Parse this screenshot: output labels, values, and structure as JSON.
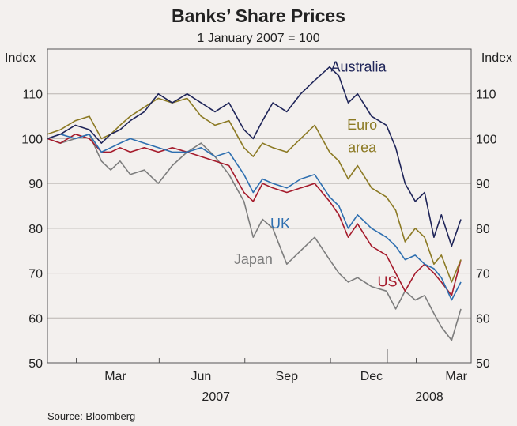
{
  "chart_data": {
    "type": "line",
    "title": "Banks’ Share Prices",
    "subtitle": "1 January 2007 = 100",
    "y_unit_left": "Index",
    "y_unit_right": "Index",
    "source": "Source: Bloomberg",
    "ylim": [
      50,
      120
    ],
    "y_ticks": [
      50,
      60,
      70,
      80,
      90,
      100,
      110
    ],
    "xlim": [
      "2007-01-01",
      "2008-03-31"
    ],
    "x_ticks": [
      {
        "date": "2007-03-15",
        "label": "Mar"
      },
      {
        "date": "2007-06-15",
        "label": "Jun"
      },
      {
        "date": "2007-09-15",
        "label": "Sep"
      },
      {
        "date": "2007-12-15",
        "label": "Dec"
      },
      {
        "date": "2008-03-15",
        "label": "Mar"
      }
    ],
    "x_year_labels": [
      {
        "label": "2007",
        "date": "2007-07-01"
      },
      {
        "label": "2008",
        "date": "2008-02-15"
      }
    ],
    "grid": "horizontal",
    "series": [
      {
        "name": "Australia",
        "color": "#1f2559",
        "points": [
          [
            "2007-01-01",
            100
          ],
          [
            "2007-01-15",
            101
          ],
          [
            "2007-01-31",
            103
          ],
          [
            "2007-02-15",
            102
          ],
          [
            "2007-02-28",
            99
          ],
          [
            "2007-03-10",
            101
          ],
          [
            "2007-03-20",
            102
          ],
          [
            "2007-03-31",
            104
          ],
          [
            "2007-04-15",
            106
          ],
          [
            "2007-04-30",
            110
          ],
          [
            "2007-05-15",
            108
          ],
          [
            "2007-05-31",
            110
          ],
          [
            "2007-06-15",
            108
          ],
          [
            "2007-06-30",
            106
          ],
          [
            "2007-07-15",
            108
          ],
          [
            "2007-07-31",
            102
          ],
          [
            "2007-08-10",
            100
          ],
          [
            "2007-08-20",
            104
          ],
          [
            "2007-08-31",
            108
          ],
          [
            "2007-09-15",
            106
          ],
          [
            "2007-09-30",
            110
          ],
          [
            "2007-10-15",
            113
          ],
          [
            "2007-10-31",
            116
          ],
          [
            "2007-11-10",
            114
          ],
          [
            "2007-11-20",
            108
          ],
          [
            "2007-11-30",
            110
          ],
          [
            "2007-12-15",
            105
          ],
          [
            "2007-12-31",
            103
          ],
          [
            "2008-01-10",
            98
          ],
          [
            "2008-01-20",
            90
          ],
          [
            "2008-01-31",
            86
          ],
          [
            "2008-02-10",
            88
          ],
          [
            "2008-02-20",
            78
          ],
          [
            "2008-02-28",
            83
          ],
          [
            "2008-03-10",
            76
          ],
          [
            "2008-03-20",
            82
          ]
        ]
      },
      {
        "name": "Euro area",
        "color": "#8c7a24",
        "points": [
          [
            "2007-01-01",
            101
          ],
          [
            "2007-01-15",
            102
          ],
          [
            "2007-01-31",
            104
          ],
          [
            "2007-02-15",
            105
          ],
          [
            "2007-02-28",
            100
          ],
          [
            "2007-03-10",
            101
          ],
          [
            "2007-03-20",
            103
          ],
          [
            "2007-03-31",
            105
          ],
          [
            "2007-04-15",
            107
          ],
          [
            "2007-04-30",
            109
          ],
          [
            "2007-05-15",
            108
          ],
          [
            "2007-05-31",
            109
          ],
          [
            "2007-06-15",
            105
          ],
          [
            "2007-06-30",
            103
          ],
          [
            "2007-07-15",
            104
          ],
          [
            "2007-07-31",
            98
          ],
          [
            "2007-08-10",
            96
          ],
          [
            "2007-08-20",
            99
          ],
          [
            "2007-08-31",
            98
          ],
          [
            "2007-09-15",
            97
          ],
          [
            "2007-09-30",
            100
          ],
          [
            "2007-10-15",
            103
          ],
          [
            "2007-10-31",
            97
          ],
          [
            "2007-11-10",
            95
          ],
          [
            "2007-11-20",
            91
          ],
          [
            "2007-11-30",
            94
          ],
          [
            "2007-12-15",
            89
          ],
          [
            "2007-12-31",
            87
          ],
          [
            "2008-01-10",
            84
          ],
          [
            "2008-01-20",
            77
          ],
          [
            "2008-01-31",
            80
          ],
          [
            "2008-02-10",
            78
          ],
          [
            "2008-02-20",
            72
          ],
          [
            "2008-02-28",
            74
          ],
          [
            "2008-03-10",
            68
          ],
          [
            "2008-03-20",
            73
          ]
        ]
      },
      {
        "name": "UK",
        "color": "#2e6fb0",
        "points": [
          [
            "2007-01-01",
            100
          ],
          [
            "2007-01-15",
            101
          ],
          [
            "2007-01-31",
            100
          ],
          [
            "2007-02-15",
            101
          ],
          [
            "2007-02-28",
            97
          ],
          [
            "2007-03-10",
            98
          ],
          [
            "2007-03-20",
            99
          ],
          [
            "2007-03-31",
            100
          ],
          [
            "2007-04-15",
            99
          ],
          [
            "2007-04-30",
            98
          ],
          [
            "2007-05-15",
            97
          ],
          [
            "2007-05-31",
            97
          ],
          [
            "2007-06-15",
            98
          ],
          [
            "2007-06-30",
            96
          ],
          [
            "2007-07-15",
            97
          ],
          [
            "2007-07-31",
            92
          ],
          [
            "2007-08-10",
            88
          ],
          [
            "2007-08-20",
            91
          ],
          [
            "2007-08-31",
            90
          ],
          [
            "2007-09-15",
            89
          ],
          [
            "2007-09-30",
            91
          ],
          [
            "2007-10-15",
            92
          ],
          [
            "2007-10-31",
            87
          ],
          [
            "2007-11-10",
            85
          ],
          [
            "2007-11-20",
            80
          ],
          [
            "2007-11-30",
            83
          ],
          [
            "2007-12-15",
            80
          ],
          [
            "2007-12-31",
            78
          ],
          [
            "2008-01-10",
            76
          ],
          [
            "2008-01-20",
            73
          ],
          [
            "2008-01-31",
            74
          ],
          [
            "2008-02-10",
            72
          ],
          [
            "2008-02-20",
            71
          ],
          [
            "2008-02-28",
            69
          ],
          [
            "2008-03-10",
            64
          ],
          [
            "2008-03-20",
            68
          ]
        ]
      },
      {
        "name": "US",
        "color": "#a51a2b",
        "points": [
          [
            "2007-01-01",
            100
          ],
          [
            "2007-01-15",
            99
          ],
          [
            "2007-01-31",
            101
          ],
          [
            "2007-02-15",
            100
          ],
          [
            "2007-02-28",
            97
          ],
          [
            "2007-03-10",
            97
          ],
          [
            "2007-03-20",
            98
          ],
          [
            "2007-03-31",
            97
          ],
          [
            "2007-04-15",
            98
          ],
          [
            "2007-04-30",
            97
          ],
          [
            "2007-05-15",
            98
          ],
          [
            "2007-05-31",
            97
          ],
          [
            "2007-06-15",
            96
          ],
          [
            "2007-06-30",
            95
          ],
          [
            "2007-07-15",
            94
          ],
          [
            "2007-07-31",
            88
          ],
          [
            "2007-08-10",
            86
          ],
          [
            "2007-08-20",
            90
          ],
          [
            "2007-08-31",
            89
          ],
          [
            "2007-09-15",
            88
          ],
          [
            "2007-09-30",
            89
          ],
          [
            "2007-10-15",
            90
          ],
          [
            "2007-10-31",
            86
          ],
          [
            "2007-11-10",
            83
          ],
          [
            "2007-11-20",
            78
          ],
          [
            "2007-11-30",
            81
          ],
          [
            "2007-12-15",
            76
          ],
          [
            "2007-12-31",
            74
          ],
          [
            "2008-01-10",
            70
          ],
          [
            "2008-01-20",
            66
          ],
          [
            "2008-01-31",
            70
          ],
          [
            "2008-02-10",
            72
          ],
          [
            "2008-02-20",
            70
          ],
          [
            "2008-02-28",
            68
          ],
          [
            "2008-03-10",
            65
          ],
          [
            "2008-03-20",
            73
          ]
        ]
      },
      {
        "name": "Japan",
        "color": "#7d7d7d",
        "points": [
          [
            "2007-01-01",
            100
          ],
          [
            "2007-01-15",
            99
          ],
          [
            "2007-01-31",
            100
          ],
          [
            "2007-02-15",
            101
          ],
          [
            "2007-02-28",
            95
          ],
          [
            "2007-03-10",
            93
          ],
          [
            "2007-03-20",
            95
          ],
          [
            "2007-03-31",
            92
          ],
          [
            "2007-04-15",
            93
          ],
          [
            "2007-04-30",
            90
          ],
          [
            "2007-05-15",
            94
          ],
          [
            "2007-05-31",
            97
          ],
          [
            "2007-06-15",
            99
          ],
          [
            "2007-06-30",
            96
          ],
          [
            "2007-07-15",
            92
          ],
          [
            "2007-07-31",
            86
          ],
          [
            "2007-08-10",
            78
          ],
          [
            "2007-08-20",
            82
          ],
          [
            "2007-08-31",
            80
          ],
          [
            "2007-09-15",
            72
          ],
          [
            "2007-09-30",
            75
          ],
          [
            "2007-10-15",
            78
          ],
          [
            "2007-10-31",
            73
          ],
          [
            "2007-11-10",
            70
          ],
          [
            "2007-11-20",
            68
          ],
          [
            "2007-11-30",
            69
          ],
          [
            "2007-12-15",
            67
          ],
          [
            "2007-12-31",
            66
          ],
          [
            "2008-01-10",
            62
          ],
          [
            "2008-01-20",
            66
          ],
          [
            "2008-01-31",
            64
          ],
          [
            "2008-02-10",
            65
          ],
          [
            "2008-02-20",
            61
          ],
          [
            "2008-02-28",
            58
          ],
          [
            "2008-03-10",
            55
          ],
          [
            "2008-03-20",
            62
          ]
        ]
      }
    ],
    "annotations": [
      {
        "text": "Australia",
        "series": "Australia",
        "anchor": [
          "2007-12-01",
          115
        ]
      },
      {
        "text": "Euro",
        "series": "Euro area",
        "anchor": [
          "2007-12-05",
          102
        ]
      },
      {
        "text": "area",
        "series": "Euro area",
        "anchor": [
          "2007-12-05",
          97
        ]
      },
      {
        "text": "UK",
        "series": "UK",
        "anchor": [
          "2007-09-08",
          80
        ]
      },
      {
        "text": "Japan",
        "series": "Japan",
        "anchor": [
          "2007-08-10",
          72
        ]
      },
      {
        "text": "US",
        "series": "US",
        "anchor": [
          "2008-01-01",
          67
        ]
      }
    ]
  }
}
